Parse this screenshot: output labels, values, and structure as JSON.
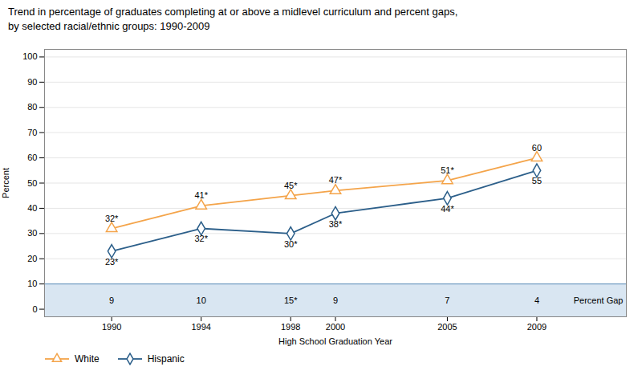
{
  "chart_data": {
    "type": "line",
    "title": "Trend in percentage of graduates completing at or above a midlevel curriculum and percent gaps,",
    "subtitle": "by selected racial/ethnic groups: 1990-2009",
    "xlabel": "High School Graduation Year",
    "ylabel": "Percent",
    "x": [
      1990,
      1994,
      1998,
      2000,
      2005,
      2009
    ],
    "series": [
      {
        "name": "White",
        "color": "#F4A44A",
        "marker": "triangle",
        "values": [
          32,
          41,
          45,
          47,
          51,
          60
        ],
        "value_labels": [
          "32*",
          "41*",
          "45*",
          "47*",
          "51*",
          "60"
        ]
      },
      {
        "name": "Hispanic",
        "color": "#2C5F8A",
        "marker": "diamond",
        "values": [
          23,
          32,
          30,
          38,
          44,
          55
        ],
        "value_labels": [
          "23*",
          "32*",
          "30*",
          "38*",
          "44*",
          "55"
        ]
      }
    ],
    "percent_gap": {
      "label": "Percent Gap",
      "values": [
        9,
        10,
        15,
        9,
        7,
        4
      ],
      "value_labels": [
        "9",
        "10",
        "15*",
        "9",
        "7",
        "4"
      ]
    },
    "xlim": [
      1987,
      2013
    ],
    "xticks": [
      1990,
      1994,
      1998,
      2000,
      2005,
      2009
    ],
    "ylim": [
      -3,
      103
    ],
    "yticks": [
      0,
      10,
      20,
      30,
      40,
      50,
      60,
      70,
      80,
      90,
      100
    ],
    "grid": true,
    "legend": "lower left",
    "data_labels": true
  }
}
